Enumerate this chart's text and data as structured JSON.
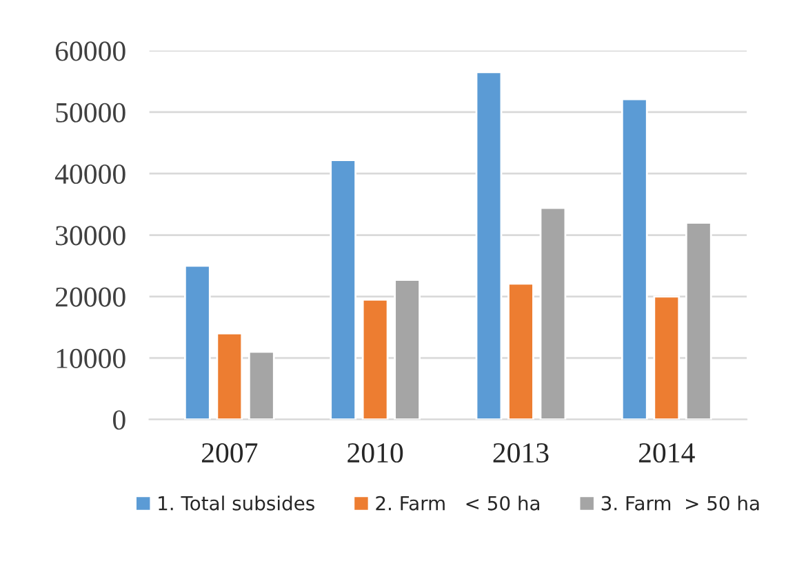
{
  "chart_data": {
    "type": "bar",
    "categories": [
      "2007",
      "2010",
      "2013",
      "2014"
    ],
    "series": [
      {
        "name": "1. Total subsides",
        "color": "#5b9bd5",
        "values": [
          25000,
          42200,
          56500,
          52100
        ]
      },
      {
        "name": "2. Farm   < 50 ha",
        "color": "#ed7d31",
        "values": [
          14000,
          19500,
          22100,
          20000
        ]
      },
      {
        "name": "3. Farm  > 50 ha",
        "color": "#a5a5a5",
        "values": [
          11000,
          22700,
          34400,
          32000
        ]
      }
    ],
    "ylim": [
      0,
      60000
    ],
    "yticks": [
      0,
      10000,
      20000,
      30000,
      40000,
      50000,
      60000
    ],
    "grid": "y",
    "legend": "bottom"
  }
}
